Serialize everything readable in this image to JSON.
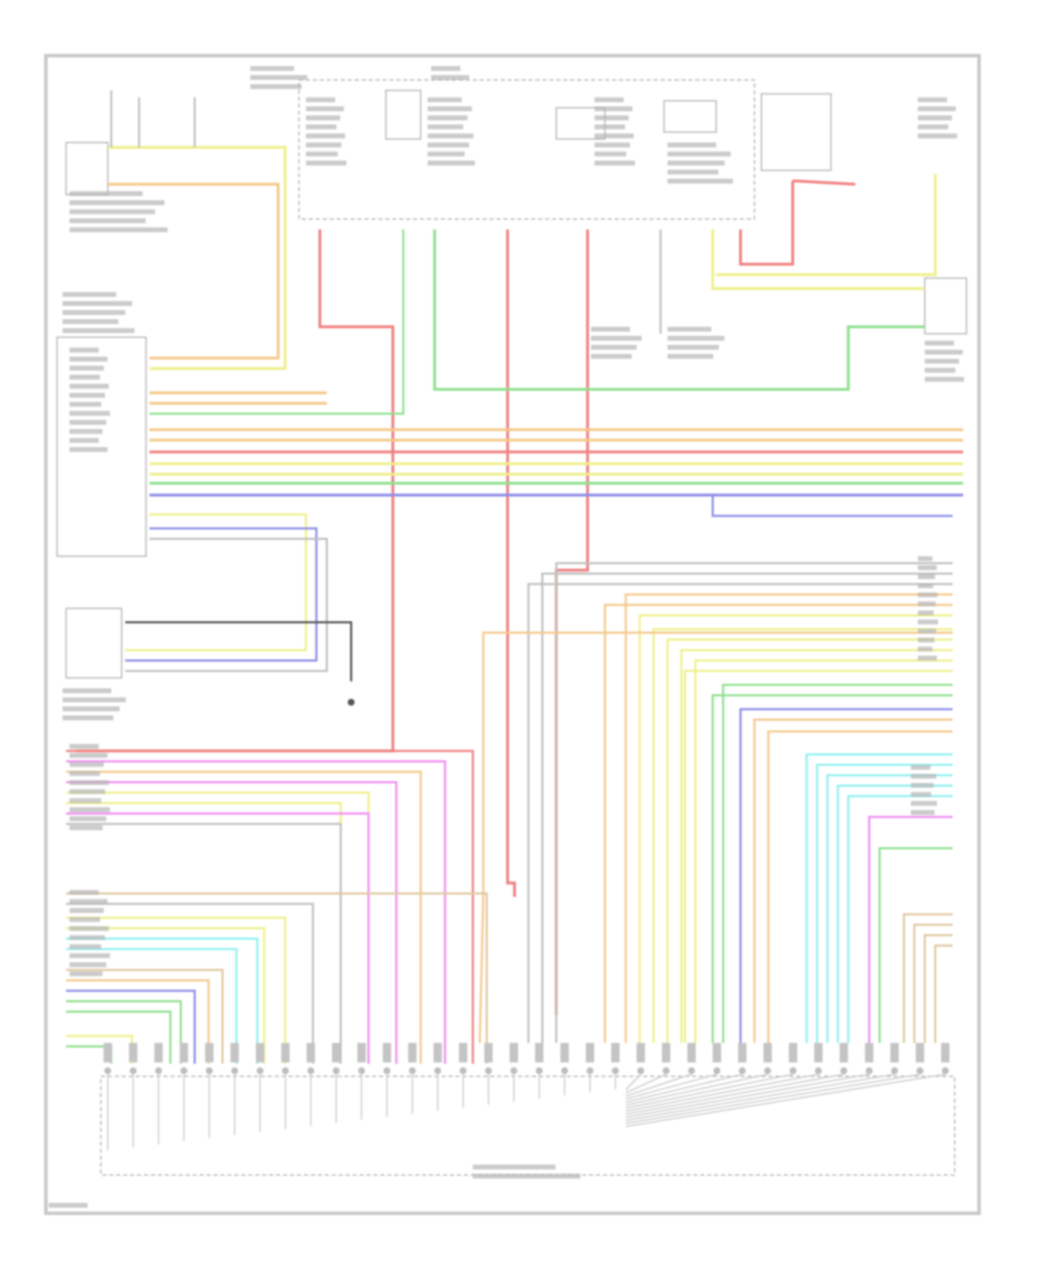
{
  "diagram": {
    "frame_color": "#c8c8c8",
    "text_color": "#9a9a9a",
    "wire_colors": {
      "red": "#f08080",
      "orange": "#f4c98a",
      "yellow": "#eef08a",
      "green": "#8fe08f",
      "blue": "#8c8ce8",
      "cyan": "#8ff0f0",
      "pink": "#f08cf0",
      "tan": "#e0c8a0",
      "gray": "#c0c0c0",
      "black": "#555555"
    },
    "labels": []
  }
}
